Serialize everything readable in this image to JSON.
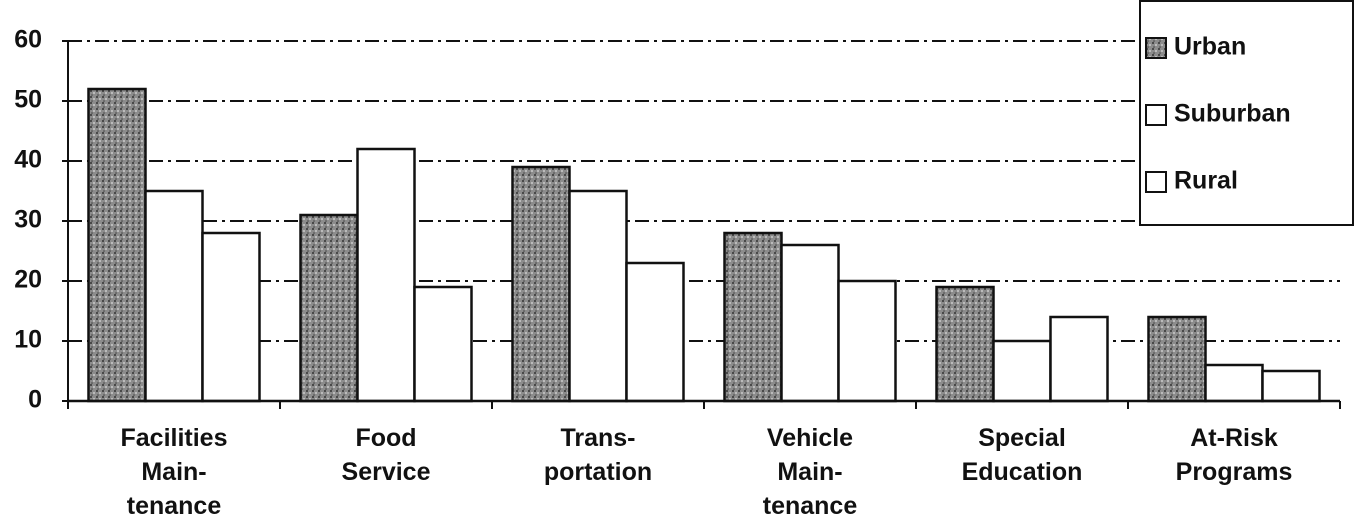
{
  "chart_data": {
    "type": "bar",
    "categories": [
      "Facilities\nMain-\ntenance",
      "Food\nService",
      "Trans-\nportation",
      "Vehicle\nMain-\ntenance",
      "Special\nEducation",
      "At-Risk\nPrograms"
    ],
    "series": [
      {
        "name": "Urban",
        "color": "#8c8c8c",
        "values": [
          52,
          31,
          39,
          28,
          19,
          14
        ]
      },
      {
        "name": "Suburban",
        "color": "#ffffff",
        "values": [
          35,
          42,
          35,
          26,
          10,
          6
        ]
      },
      {
        "name": "Rural",
        "color": "#ffffff",
        "values": [
          28,
          19,
          23,
          20,
          14,
          5
        ]
      }
    ],
    "ylim": [
      0,
      60
    ],
    "yticks": [
      0,
      10,
      20,
      30,
      40,
      50,
      60
    ],
    "grid": true,
    "legend": "top-right"
  }
}
